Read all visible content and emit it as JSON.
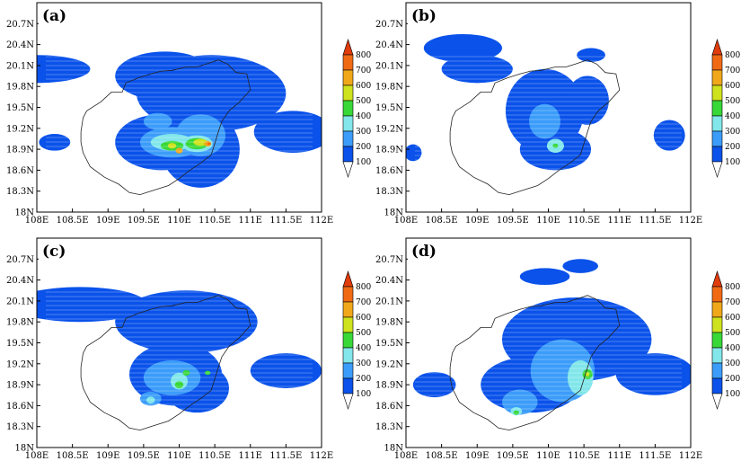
{
  "chart_data": [
    {
      "type": "heatmap",
      "panel_label": "(a)",
      "x_ticks": [
        "108E",
        "108.5E",
        "109E",
        "109.5E",
        "110E",
        "110.5E",
        "111E",
        "111.5E",
        "112E"
      ],
      "y_ticks": [
        "18N",
        "18.3N",
        "18.6N",
        "18.9N",
        "19.2N",
        "19.5N",
        "19.8N",
        "20.1N",
        "20.4N",
        "20.7N"
      ],
      "xlim": [
        108,
        112
      ],
      "ylim": [
        18,
        21
      ],
      "colorbar": {
        "levels": [
          100,
          200,
          300,
          400,
          500,
          600,
          700,
          800
        ],
        "labels": [
          "100",
          "200",
          "300",
          "400",
          "500",
          "600",
          "700",
          "800"
        ]
      },
      "cells": [
        {
          "lon": 108.0,
          "lat": 20.05,
          "rx": 0.75,
          "ry": 0.2,
          "value": 100
        },
        {
          "lon": 109.8,
          "lat": 19.95,
          "rx": 0.7,
          "ry": 0.35,
          "value": 100
        },
        {
          "lon": 110.45,
          "lat": 19.7,
          "rx": 1.05,
          "ry": 0.55,
          "value": 100
        },
        {
          "lon": 111.6,
          "lat": 19.15,
          "rx": 0.55,
          "ry": 0.3,
          "value": 100
        },
        {
          "lon": 109.75,
          "lat": 19.0,
          "rx": 0.65,
          "ry": 0.4,
          "value": 100
        },
        {
          "lon": 110.3,
          "lat": 18.9,
          "rx": 0.55,
          "ry": 0.55,
          "value": 100
        },
        {
          "lon": 108.25,
          "lat": 19.0,
          "rx": 0.22,
          "ry": 0.12,
          "value": 100
        },
        {
          "lon": 109.9,
          "lat": 19.0,
          "rx": 0.45,
          "ry": 0.22,
          "value": 200
        },
        {
          "lon": 110.3,
          "lat": 19.1,
          "rx": 0.35,
          "ry": 0.3,
          "value": 200
        },
        {
          "lon": 109.7,
          "lat": 19.3,
          "rx": 0.2,
          "ry": 0.12,
          "value": 200
        },
        {
          "lon": 109.9,
          "lat": 19.0,
          "rx": 0.3,
          "ry": 0.12,
          "value": 300
        },
        {
          "lon": 110.25,
          "lat": 18.98,
          "rx": 0.22,
          "ry": 0.12,
          "value": 300
        },
        {
          "lon": 109.9,
          "lat": 18.95,
          "rx": 0.16,
          "ry": 0.07,
          "value": 400
        },
        {
          "lon": 110.25,
          "lat": 18.98,
          "rx": 0.16,
          "ry": 0.08,
          "value": 400
        },
        {
          "lon": 109.9,
          "lat": 18.95,
          "rx": 0.06,
          "ry": 0.04,
          "value": 500
        },
        {
          "lon": 110.3,
          "lat": 19.0,
          "rx": 0.1,
          "ry": 0.05,
          "value": 500
        },
        {
          "lon": 110.4,
          "lat": 18.98,
          "rx": 0.05,
          "ry": 0.04,
          "value": 600
        },
        {
          "lon": 110.0,
          "lat": 18.88,
          "rx": 0.05,
          "ry": 0.04,
          "value": 600
        },
        {
          "lon": 110.42,
          "lat": 18.98,
          "rx": 0.025,
          "ry": 0.02,
          "value": 700
        }
      ]
    },
    {
      "type": "heatmap",
      "panel_label": "(b)",
      "x_ticks": [
        "108E",
        "108.5E",
        "109E",
        "109.5E",
        "110E",
        "110.5E",
        "111E",
        "111.5E",
        "112E"
      ],
      "y_ticks": [
        "18N",
        "18.3N",
        "18.6N",
        "18.9N",
        "19.2N",
        "19.5N",
        "19.8N",
        "20.1N",
        "20.4N",
        "20.7N"
      ],
      "xlim": [
        108,
        112
      ],
      "ylim": [
        18,
        21
      ],
      "colorbar": {
        "levels": [
          100,
          200,
          300,
          400,
          500,
          600,
          700,
          800
        ],
        "labels": [
          "100",
          "200",
          "300",
          "400",
          "500",
          "600",
          "700",
          "800"
        ]
      },
      "cells": [
        {
          "lon": 108.8,
          "lat": 20.35,
          "rx": 0.55,
          "ry": 0.2,
          "value": 100
        },
        {
          "lon": 109.0,
          "lat": 20.05,
          "rx": 0.5,
          "ry": 0.2,
          "value": 100
        },
        {
          "lon": 109.95,
          "lat": 19.45,
          "rx": 0.55,
          "ry": 0.6,
          "value": 100
        },
        {
          "lon": 110.1,
          "lat": 18.9,
          "rx": 0.5,
          "ry": 0.3,
          "value": 100
        },
        {
          "lon": 110.55,
          "lat": 19.6,
          "rx": 0.3,
          "ry": 0.35,
          "value": 100
        },
        {
          "lon": 110.6,
          "lat": 20.25,
          "rx": 0.2,
          "ry": 0.1,
          "value": 100
        },
        {
          "lon": 111.7,
          "lat": 19.1,
          "rx": 0.22,
          "ry": 0.22,
          "value": 100
        },
        {
          "lon": 108.1,
          "lat": 18.85,
          "rx": 0.12,
          "ry": 0.12,
          "value": 100
        },
        {
          "lon": 109.95,
          "lat": 19.3,
          "rx": 0.22,
          "ry": 0.25,
          "value": 200
        },
        {
          "lon": 110.1,
          "lat": 18.95,
          "rx": 0.12,
          "ry": 0.1,
          "value": 300
        },
        {
          "lon": 110.1,
          "lat": 18.95,
          "rx": 0.04,
          "ry": 0.03,
          "value": 400
        }
      ]
    },
    {
      "type": "heatmap",
      "panel_label": "(c)",
      "x_ticks": [
        "108E",
        "108.5E",
        "109E",
        "109.5E",
        "110E",
        "110.5E",
        "111E",
        "111.5E",
        "112E"
      ],
      "y_ticks": [
        "18N",
        "18.3N",
        "18.6N",
        "18.9N",
        "19.2N",
        "19.5N",
        "19.8N",
        "20.1N",
        "20.4N",
        "20.7N"
      ],
      "xlim": [
        108,
        112
      ],
      "ylim": [
        18,
        21
      ],
      "colorbar": {
        "levels": [
          100,
          200,
          300,
          400,
          500,
          600,
          700,
          800
        ],
        "labels": [
          "100",
          "200",
          "300",
          "400",
          "500",
          "600",
          "700",
          "800"
        ]
      },
      "cells": [
        {
          "lon": 108.6,
          "lat": 20.05,
          "rx": 0.95,
          "ry": 0.25,
          "value": 100
        },
        {
          "lon": 110.1,
          "lat": 19.8,
          "rx": 1.0,
          "ry": 0.45,
          "value": 100
        },
        {
          "lon": 109.95,
          "lat": 19.05,
          "rx": 0.65,
          "ry": 0.45,
          "value": 100
        },
        {
          "lon": 111.5,
          "lat": 19.1,
          "rx": 0.5,
          "ry": 0.25,
          "value": 100
        },
        {
          "lon": 110.25,
          "lat": 18.85,
          "rx": 0.45,
          "ry": 0.35,
          "value": 100
        },
        {
          "lon": 109.9,
          "lat": 19.0,
          "rx": 0.4,
          "ry": 0.25,
          "value": 200
        },
        {
          "lon": 109.6,
          "lat": 18.7,
          "rx": 0.15,
          "ry": 0.1,
          "value": 200
        },
        {
          "lon": 110.0,
          "lat": 18.95,
          "rx": 0.12,
          "ry": 0.12,
          "value": 300
        },
        {
          "lon": 109.6,
          "lat": 18.68,
          "rx": 0.06,
          "ry": 0.05,
          "value": 300
        },
        {
          "lon": 110.0,
          "lat": 18.9,
          "rx": 0.06,
          "ry": 0.05,
          "value": 400
        },
        {
          "lon": 110.1,
          "lat": 19.07,
          "rx": 0.05,
          "ry": 0.04,
          "value": 400
        },
        {
          "lon": 110.4,
          "lat": 19.07,
          "rx": 0.04,
          "ry": 0.03,
          "value": 400
        }
      ]
    },
    {
      "type": "heatmap",
      "panel_label": "(d)",
      "x_ticks": [
        "108E",
        "108.5E",
        "109E",
        "109.5E",
        "110E",
        "110.5E",
        "111E",
        "111.5E",
        "112E"
      ],
      "y_ticks": [
        "18N",
        "18.3N",
        "18.6N",
        "18.9N",
        "19.2N",
        "19.5N",
        "19.8N",
        "20.1N",
        "20.4N",
        "20.7N"
      ],
      "xlim": [
        108,
        112
      ],
      "ylim": [
        18,
        21
      ],
      "colorbar": {
        "levels": [
          100,
          200,
          300,
          400,
          500,
          600,
          700,
          800
        ],
        "labels": [
          "100",
          "200",
          "300",
          "400",
          "500",
          "600",
          "700",
          "800"
        ]
      },
      "cells": [
        {
          "lon": 110.4,
          "lat": 19.55,
          "rx": 1.05,
          "ry": 0.6,
          "value": 100
        },
        {
          "lon": 109.75,
          "lat": 18.9,
          "rx": 0.7,
          "ry": 0.4,
          "value": 100
        },
        {
          "lon": 111.5,
          "lat": 19.05,
          "rx": 0.55,
          "ry": 0.3,
          "value": 100
        },
        {
          "lon": 109.95,
          "lat": 20.45,
          "rx": 0.35,
          "ry": 0.12,
          "value": 100
        },
        {
          "lon": 110.45,
          "lat": 20.6,
          "rx": 0.25,
          "ry": 0.1,
          "value": 100
        },
        {
          "lon": 108.4,
          "lat": 18.9,
          "rx": 0.3,
          "ry": 0.18,
          "value": 100
        },
        {
          "lon": 110.2,
          "lat": 19.1,
          "rx": 0.45,
          "ry": 0.45,
          "value": 200
        },
        {
          "lon": 109.6,
          "lat": 18.65,
          "rx": 0.25,
          "ry": 0.18,
          "value": 200
        },
        {
          "lon": 110.45,
          "lat": 19.0,
          "rx": 0.18,
          "ry": 0.25,
          "value": 300
        },
        {
          "lon": 109.55,
          "lat": 18.52,
          "rx": 0.08,
          "ry": 0.06,
          "value": 300
        },
        {
          "lon": 110.55,
          "lat": 19.05,
          "rx": 0.07,
          "ry": 0.07,
          "value": 400
        },
        {
          "lon": 109.55,
          "lat": 18.5,
          "rx": 0.04,
          "ry": 0.03,
          "value": 400
        },
        {
          "lon": 110.55,
          "lat": 19.05,
          "rx": 0.03,
          "ry": 0.03,
          "value": 500
        }
      ]
    }
  ],
  "colors": {
    "palette": [
      "#ffffff",
      "#0a52ea",
      "#3c9cfa",
      "#82e6ea",
      "#38d838",
      "#cfe21e",
      "#f0a81a",
      "#f06a14",
      "#e03c0c"
    ],
    "coastline": "#222222",
    "frame": "#000000",
    "hatch": "#ffffff"
  }
}
